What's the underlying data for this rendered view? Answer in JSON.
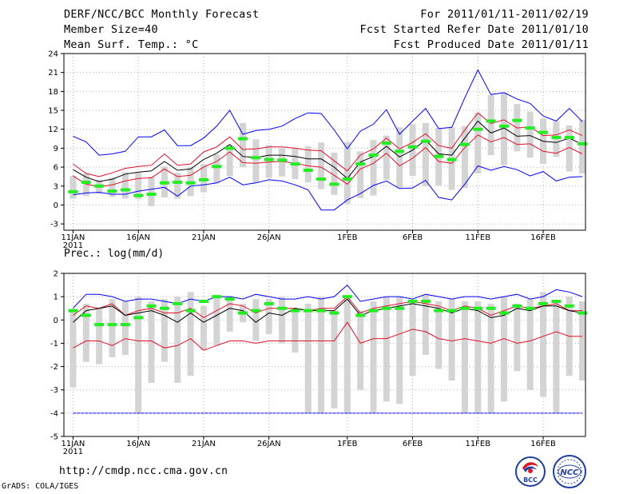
{
  "header": {
    "title": "DERF/NCC/BCC Monthly Forecast",
    "member_size": "Member Size=40",
    "variable": "Mean Surf. Temp.: °C",
    "for_period": "For 2011/01/11-2011/02/19",
    "started": "Fcst Started Refer Date 2011/01/10",
    "produced": "Fcst Produced Date 2011/01/11"
  },
  "footer": {
    "url": "http://cmdp.ncc.cma.gov.cn",
    "credit": "GrADS: COLA/IGES"
  },
  "logos": {
    "left": "BCC",
    "right": "NCC"
  },
  "colors": {
    "max": "#0000ff",
    "sd": "#e0102a",
    "mean": "#000000",
    "obs": "#22ee22",
    "box": "#d4d4d4",
    "grid": "#b0b0b0"
  },
  "chart_data": [
    {
      "type": "line",
      "title": "Mean Surf. Temp.: °C",
      "xlabel": "",
      "ylabel": "",
      "ylim": [
        -4,
        24
      ],
      "yticks": [
        -3,
        0,
        3,
        6,
        9,
        12,
        15,
        18,
        21,
        24
      ],
      "x_tick_labels": [
        {
          "day": 1,
          "label": "11JAN",
          "sub": "2011"
        },
        {
          "day": 6,
          "label": "16JAN"
        },
        {
          "day": 11,
          "label": "21JAN"
        },
        {
          "day": 16,
          "label": "26JAN"
        },
        {
          "day": 22,
          "label": "1FEB"
        },
        {
          "day": 27,
          "label": "6FEB"
        },
        {
          "day": 32,
          "label": "11FEB"
        },
        {
          "day": 37,
          "label": "16FEB"
        }
      ],
      "x": [
        1,
        2,
        3,
        4,
        5,
        6,
        7,
        8,
        9,
        10,
        11,
        12,
        13,
        14,
        15,
        16,
        17,
        18,
        19,
        20,
        21,
        22,
        23,
        24,
        25,
        26,
        27,
        28,
        29,
        30,
        31,
        32,
        33,
        34,
        35,
        36,
        37,
        38,
        39,
        40
      ],
      "series": [
        {
          "name": "max",
          "values": [
            10.9,
            10.0,
            7.9,
            8.1,
            8.5,
            10.8,
            10.8,
            11.9,
            9.4,
            9.4,
            10.6,
            12.5,
            15.0,
            11.2,
            11.8,
            12.0,
            12.5,
            13.7,
            14.6,
            14.5,
            11.9,
            8.9,
            11.7,
            12.8,
            15.1,
            11.2,
            13.3,
            15.3,
            12.1,
            12.3,
            17.0,
            21.4,
            17.5,
            17.8,
            16.8,
            16.1,
            14.1,
            13.3,
            15.3,
            13.2
          ]
        },
        {
          "name": "mean+sd",
          "values": [
            6.5,
            5.0,
            4.5,
            5.1,
            5.8,
            6.1,
            6.3,
            8.1,
            6.3,
            6.5,
            8.4,
            9.2,
            10.8,
            8.8,
            8.9,
            9.2,
            9.2,
            9.0,
            8.7,
            8.6,
            7.0,
            5.4,
            7.9,
            8.9,
            10.6,
            8.9,
            9.9,
            11.3,
            9.4,
            9.0,
            11.9,
            14.6,
            12.9,
            13.5,
            12.2,
            12.4,
            11.0,
            11.1,
            11.9,
            11.0
          ]
        },
        {
          "name": "mean",
          "values": [
            5.6,
            4.4,
            3.7,
            4.1,
            4.9,
            5.2,
            5.4,
            6.9,
            5.5,
            5.7,
            7.2,
            8.2,
            9.6,
            7.7,
            7.5,
            7.9,
            7.9,
            7.7,
            7.3,
            7.3,
            6.0,
            4.2,
            6.8,
            7.7,
            9.3,
            7.6,
            8.7,
            10.3,
            8.1,
            7.9,
            10.6,
            13.3,
            11.4,
            12.2,
            10.9,
            11.0,
            10.1,
            9.9,
            10.6,
            9.6
          ]
        },
        {
          "name": "mean-sd",
          "values": [
            4.6,
            3.3,
            2.9,
            3.2,
            3.8,
            4.2,
            4.3,
            5.7,
            4.5,
            4.7,
            6.0,
            6.9,
            8.4,
            6.7,
            6.6,
            6.8,
            6.9,
            6.6,
            6.2,
            6.0,
            4.7,
            3.3,
            5.7,
            6.6,
            8.2,
            6.2,
            7.4,
            9.1,
            6.9,
            6.6,
            9.1,
            11.1,
            10.0,
            10.7,
            9.6,
            9.7,
            8.5,
            8.2,
            9.1,
            8.1
          ]
        },
        {
          "name": "min",
          "values": [
            1.6,
            1.9,
            2.0,
            1.7,
            1.7,
            2.2,
            2.5,
            2.8,
            1.4,
            3.0,
            3.2,
            3.5,
            4.4,
            3.2,
            3.5,
            4.0,
            3.8,
            3.2,
            2.4,
            -0.8,
            -0.8,
            0.8,
            1.8,
            3.1,
            3.8,
            2.6,
            2.7,
            3.9,
            1.2,
            0.8,
            3.3,
            6.2,
            5.5,
            6.1,
            5.6,
            4.6,
            5.3,
            3.8,
            4.4,
            4.5
          ]
        }
      ],
      "boxes": [
        [
          1.0,
          4.6
        ],
        [
          1.4,
          5.0
        ],
        [
          1.8,
          4.0
        ],
        [
          1.3,
          4.3
        ],
        [
          1.0,
          5.2
        ],
        [
          0.9,
          5.1
        ],
        [
          -0.2,
          4.5
        ],
        [
          1.2,
          6.1
        ],
        [
          1.0,
          5.1
        ],
        [
          1.4,
          6.0
        ],
        [
          2.0,
          6.5
        ],
        [
          3.4,
          8.0
        ],
        [
          4.6,
          9.5
        ],
        [
          6.0,
          13.0
        ],
        [
          3.5,
          10.4
        ],
        [
          4.3,
          9.5
        ],
        [
          4.5,
          9.0
        ],
        [
          4.1,
          9.1
        ],
        [
          3.6,
          9.3
        ],
        [
          2.5,
          9.9
        ],
        [
          1.6,
          8.3
        ],
        [
          0.2,
          10.0
        ],
        [
          1.1,
          8.5
        ],
        [
          1.5,
          10.3
        ],
        [
          4.0,
          11.0
        ],
        [
          2.7,
          12.3
        ],
        [
          4.6,
          12.8
        ],
        [
          3.0,
          13.0
        ],
        [
          3.1,
          12.2
        ],
        [
          2.4,
          12.3
        ],
        [
          2.7,
          12.5
        ],
        [
          5.0,
          14.6
        ],
        [
          7.9,
          17.4
        ],
        [
          6.3,
          17.8
        ],
        [
          8.5,
          16.0
        ],
        [
          7.5,
          14.8
        ],
        [
          6.5,
          13.7
        ],
        [
          7.6,
          13.2
        ],
        [
          5.3,
          12.6
        ],
        [
          5.0,
          13.5
        ]
      ],
      "observed": [
        2.1,
        3.6,
        3.0,
        2.2,
        2.4,
        1.5,
        1.7,
        3.5,
        3.6,
        3.5,
        4.0,
        6.1,
        9.0,
        10.5,
        7.5,
        7.2,
        7.1,
        6.5,
        5.5,
        4.1,
        3.3,
        4.1,
        6.5,
        7.9,
        9.8,
        8.5,
        9.2,
        10.1,
        7.7,
        7.2,
        9.6,
        12.0,
        13.3,
        12.5,
        13.4,
        12.2,
        11.5,
        10.7,
        10.7,
        9.7
      ]
    },
    {
      "type": "line",
      "title": "Prec.: log(mm/d)",
      "xlabel": "",
      "ylabel": "",
      "ylim": [
        -5,
        2
      ],
      "yticks": [
        -5,
        -4,
        -3,
        -2,
        -1,
        0,
        1,
        2
      ],
      "x_tick_labels": [
        {
          "day": 1,
          "label": "11JAN",
          "sub": "2011"
        },
        {
          "day": 6,
          "label": "16JAN"
        },
        {
          "day": 11,
          "label": "21JAN"
        },
        {
          "day": 16,
          "label": "26JAN"
        },
        {
          "day": 22,
          "label": "1FEB"
        },
        {
          "day": 27,
          "label": "6FEB"
        },
        {
          "day": 32,
          "label": "11FEB"
        },
        {
          "day": 37,
          "label": "16FEB"
        }
      ],
      "x": [
        1,
        2,
        3,
        4,
        5,
        6,
        7,
        8,
        9,
        10,
        11,
        12,
        13,
        14,
        15,
        16,
        17,
        18,
        19,
        20,
        21,
        22,
        23,
        24,
        25,
        26,
        27,
        28,
        29,
        30,
        31,
        32,
        33,
        34,
        35,
        36,
        37,
        38,
        39,
        40
      ],
      "series": [
        {
          "name": "max",
          "values": [
            0.5,
            1.1,
            1.1,
            1.0,
            0.8,
            0.9,
            0.9,
            0.8,
            0.7,
            0.9,
            0.8,
            1.0,
            1.0,
            0.9,
            1.1,
            1.0,
            0.9,
            0.9,
            1.0,
            0.9,
            1.0,
            1.5,
            0.8,
            0.9,
            1.0,
            1.0,
            0.9,
            1.1,
            1.0,
            0.9,
            1.0,
            1.0,
            0.9,
            1.0,
            1.1,
            0.9,
            1.0,
            1.3,
            1.2,
            1.0
          ]
        },
        {
          "name": "mean+sd",
          "values": [
            0.2,
            0.6,
            0.5,
            0.7,
            0.2,
            0.4,
            0.5,
            0.3,
            0.3,
            0.5,
            0.1,
            0.4,
            0.7,
            0.6,
            0.3,
            0.5,
            0.5,
            0.5,
            0.4,
            0.5,
            0.5,
            1.0,
            0.3,
            0.5,
            0.6,
            0.7,
            0.8,
            0.7,
            0.6,
            0.4,
            0.6,
            0.5,
            0.2,
            0.4,
            0.6,
            0.5,
            0.6,
            0.7,
            0.4,
            0.4
          ]
        },
        {
          "name": "mean",
          "values": [
            -0.1,
            0.4,
            0.5,
            0.6,
            0.2,
            0.3,
            0.4,
            0.2,
            -0.1,
            0.3,
            -0.1,
            0.2,
            0.5,
            0.4,
            -0.1,
            0.3,
            0.2,
            0.5,
            0.4,
            0.4,
            0.4,
            0.9,
            0.2,
            0.4,
            0.5,
            0.6,
            0.7,
            0.6,
            0.5,
            0.3,
            0.5,
            0.4,
            0.1,
            0.2,
            0.5,
            0.4,
            0.6,
            0.6,
            0.4,
            0.3
          ]
        },
        {
          "name": "mean-sd",
          "values": [
            -1.2,
            -0.9,
            -0.9,
            -1.1,
            -0.8,
            -0.9,
            -0.9,
            -1.2,
            -1.1,
            -0.8,
            -1.3,
            -1.1,
            -0.9,
            -0.9,
            -1.0,
            -0.9,
            -0.9,
            -0.9,
            -0.9,
            -0.9,
            -0.9,
            -0.1,
            -1.0,
            -0.8,
            -0.8,
            -0.6,
            -0.4,
            -0.5,
            -0.8,
            -0.9,
            -0.8,
            -0.9,
            -1.0,
            -0.8,
            -1.0,
            -0.9,
            -0.7,
            -0.5,
            -0.7,
            -0.7
          ]
        },
        {
          "name": "min",
          "values": [
            -4,
            -4,
            -4,
            -4,
            -4,
            -4,
            -4,
            -4,
            -4,
            -4,
            -4,
            -4,
            -4,
            -4,
            -4,
            -4,
            -4,
            -4,
            -4,
            -4,
            -4,
            -4,
            -4,
            -4,
            -4,
            -4,
            -4,
            -4,
            -4,
            -4,
            -4,
            -4,
            -4,
            -4,
            -4,
            -4,
            -4,
            -4,
            -4,
            -4
          ]
        }
      ],
      "boxes": [
        [
          -2.9,
          0.4
        ],
        [
          -1.8,
          0.7
        ],
        [
          -1.9,
          0.5
        ],
        [
          -1.6,
          0.9
        ],
        [
          -1.5,
          0.8
        ],
        [
          -4.0,
          1.0
        ],
        [
          -2.7,
          0.8
        ],
        [
          -1.8,
          0.9
        ],
        [
          -2.7,
          1.0
        ],
        [
          -2.4,
          1.2
        ],
        [
          -1.3,
          0.6
        ],
        [
          -1.1,
          1.0
        ],
        [
          -0.5,
          1.0
        ],
        [
          -0.1,
          0.7
        ],
        [
          -0.9,
          0.9
        ],
        [
          -0.6,
          0.9
        ],
        [
          -1.0,
          1.0
        ],
        [
          -1.4,
          0.4
        ],
        [
          -4.0,
          0.7
        ],
        [
          -4.0,
          1.0
        ],
        [
          -3.8,
          0.4
        ],
        [
          -4.0,
          1.0
        ],
        [
          -3.0,
          0.4
        ],
        [
          -4.0,
          0.8
        ],
        [
          -3.5,
          1.0
        ],
        [
          -3.6,
          1.0
        ],
        [
          -2.4,
          0.8
        ],
        [
          -1.5,
          1.1
        ],
        [
          -2.1,
          0.8
        ],
        [
          -2.6,
          0.9
        ],
        [
          -4.0,
          0.8
        ],
        [
          -4.0,
          0.8
        ],
        [
          -4.0,
          0.7
        ],
        [
          -3.5,
          1.0
        ],
        [
          -2.2,
          0.7
        ],
        [
          -3.0,
          0.9
        ],
        [
          -3.3,
          1.2
        ],
        [
          -4.0,
          0.8
        ],
        [
          -2.4,
          1.0
        ],
        [
          -2.6,
          0.8
        ]
      ],
      "observed": [
        0.4,
        0.2,
        -0.2,
        -0.2,
        -0.2,
        0.1,
        0.6,
        0.5,
        0.7,
        0.4,
        0.8,
        1.0,
        0.9,
        0.3,
        0.4,
        0.7,
        0.5,
        0.4,
        0.4,
        0.4,
        0.3,
        1.0,
        0.2,
        0.4,
        0.5,
        0.5,
        0.8,
        0.8,
        0.4,
        0.4,
        0.5,
        0.5,
        0.5,
        0.3,
        0.6,
        0.5,
        0.7,
        0.8,
        0.6,
        0.3
      ]
    }
  ]
}
